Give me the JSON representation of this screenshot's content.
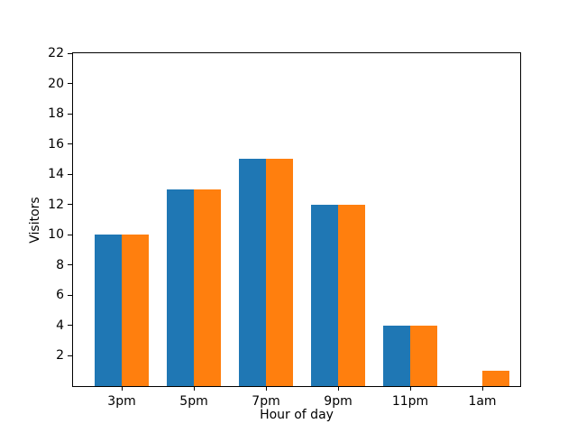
{
  "chart_data": {
    "type": "bar",
    "categories": [
      "3pm",
      "5pm",
      "7pm",
      "9pm",
      "11pm",
      "1am"
    ],
    "series": [
      {
        "color": "#1f77b4",
        "values": [
          10,
          13,
          15,
          12,
          4,
          0
        ]
      },
      {
        "color": "#ff7f0e",
        "values": [
          10,
          13,
          15,
          12,
          4,
          1
        ]
      }
    ],
    "title": "",
    "xlabel": "Hour of day",
    "ylabel": "Visitors",
    "ylim": [
      0,
      22
    ],
    "yticks": [
      2,
      4,
      6,
      8,
      10,
      12,
      14,
      16,
      18,
      20,
      22
    ],
    "grid": false,
    "legend": null,
    "colors": {
      "spine": "#000000",
      "background": "#ffffff",
      "series_blue": "#1f77b4",
      "series_orange": "#ff7f0e"
    }
  }
}
